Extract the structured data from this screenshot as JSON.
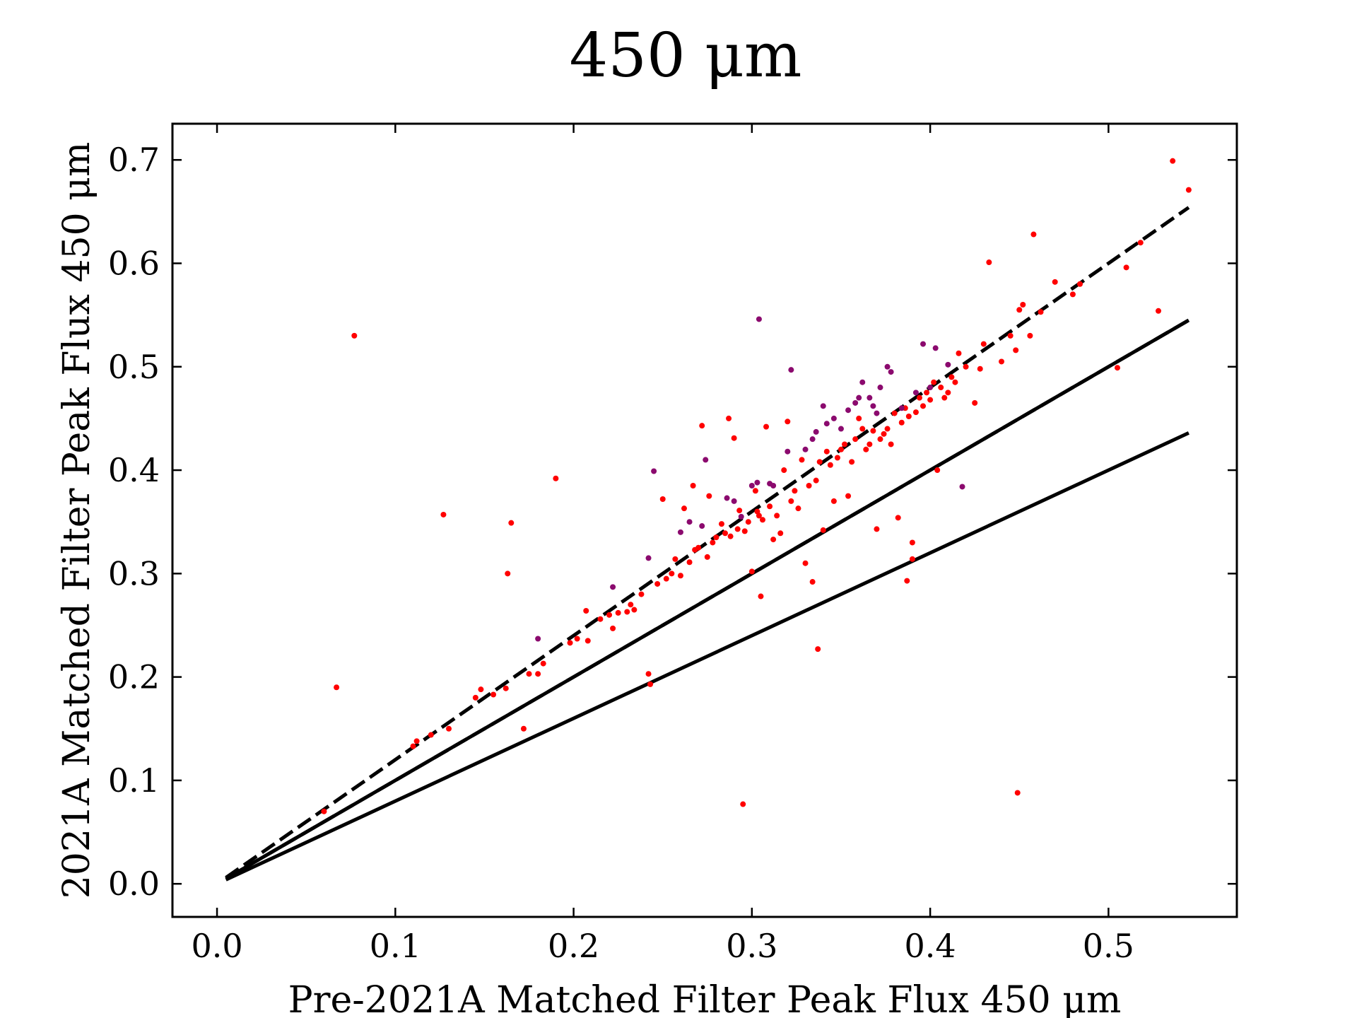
{
  "chart_data": {
    "type": "scatter",
    "title": "450 μm",
    "xlabel": "Pre-2021A Matched Filter Peak Flux 450 μm",
    "ylabel": "2021A Matched Filter Peak Flux 450 μm",
    "xlim": [
      -0.025,
      0.572
    ],
    "ylim": [
      -0.032,
      0.735
    ],
    "xticks": [
      0.0,
      0.1,
      0.2,
      0.3,
      0.4,
      0.5
    ],
    "xtick_labels": [
      "0.0",
      "0.1",
      "0.2",
      "0.3",
      "0.4",
      "0.5"
    ],
    "yticks": [
      0.0,
      0.1,
      0.2,
      0.3,
      0.4,
      0.5,
      0.6,
      0.7
    ],
    "ytick_labels": [
      "0.0",
      "0.1",
      "0.2",
      "0.3",
      "0.4",
      "0.5",
      "0.6",
      "0.7"
    ],
    "grid": false,
    "colors": {
      "red_points": "#ff0000",
      "purple_points": "#8b0a6e",
      "lines": "#000000"
    },
    "lines": [
      {
        "style": "dashed",
        "slope": 1.2,
        "x_range": [
          0.005,
          0.545
        ]
      },
      {
        "style": "dashed",
        "slope": 1.0,
        "x_range": [
          0.005,
          0.545
        ]
      },
      {
        "style": "solid",
        "slope": 1.0,
        "x_range": [
          0.005,
          0.545
        ]
      },
      {
        "style": "solid",
        "slope": 0.8,
        "x_range": [
          0.005,
          0.545
        ]
      }
    ],
    "series": [
      {
        "color": "#ff0000",
        "points": [
          [
            0.06,
            0.07
          ],
          [
            0.067,
            0.19
          ],
          [
            0.077,
            0.53
          ],
          [
            0.11,
            0.133
          ],
          [
            0.112,
            0.138
          ],
          [
            0.12,
            0.144
          ],
          [
            0.127,
            0.357
          ],
          [
            0.13,
            0.15
          ],
          [
            0.145,
            0.18
          ],
          [
            0.148,
            0.188
          ],
          [
            0.155,
            0.183
          ],
          [
            0.162,
            0.189
          ],
          [
            0.163,
            0.3
          ],
          [
            0.165,
            0.349
          ],
          [
            0.172,
            0.15
          ],
          [
            0.175,
            0.203
          ],
          [
            0.18,
            0.203
          ],
          [
            0.183,
            0.213
          ],
          [
            0.19,
            0.392
          ],
          [
            0.198,
            0.233
          ],
          [
            0.202,
            0.237
          ],
          [
            0.207,
            0.264
          ],
          [
            0.208,
            0.235
          ],
          [
            0.215,
            0.256
          ],
          [
            0.22,
            0.26
          ],
          [
            0.222,
            0.247
          ],
          [
            0.225,
            0.262
          ],
          [
            0.23,
            0.263
          ],
          [
            0.232,
            0.27
          ],
          [
            0.234,
            0.265
          ],
          [
            0.238,
            0.28
          ],
          [
            0.242,
            0.203
          ],
          [
            0.243,
            0.193
          ],
          [
            0.247,
            0.29
          ],
          [
            0.25,
            0.372
          ],
          [
            0.252,
            0.295
          ],
          [
            0.255,
            0.3
          ],
          [
            0.257,
            0.314
          ],
          [
            0.26,
            0.298
          ],
          [
            0.262,
            0.363
          ],
          [
            0.265,
            0.311
          ],
          [
            0.267,
            0.385
          ],
          [
            0.268,
            0.323
          ],
          [
            0.27,
            0.325
          ],
          [
            0.272,
            0.443
          ],
          [
            0.275,
            0.316
          ],
          [
            0.276,
            0.375
          ],
          [
            0.278,
            0.33
          ],
          [
            0.28,
            0.335
          ],
          [
            0.283,
            0.348
          ],
          [
            0.285,
            0.339
          ],
          [
            0.287,
            0.45
          ],
          [
            0.288,
            0.336
          ],
          [
            0.29,
            0.431
          ],
          [
            0.292,
            0.343
          ],
          [
            0.293,
            0.361
          ],
          [
            0.295,
            0.077
          ],
          [
            0.296,
            0.341
          ],
          [
            0.298,
            0.35
          ],
          [
            0.3,
            0.302
          ],
          [
            0.302,
            0.38
          ],
          [
            0.303,
            0.36
          ],
          [
            0.304,
            0.356
          ],
          [
            0.305,
            0.278
          ],
          [
            0.306,
            0.352
          ],
          [
            0.308,
            0.442
          ],
          [
            0.31,
            0.365
          ],
          [
            0.312,
            0.333
          ],
          [
            0.314,
            0.356
          ],
          [
            0.316,
            0.339
          ],
          [
            0.318,
            0.4
          ],
          [
            0.32,
            0.447
          ],
          [
            0.322,
            0.37
          ],
          [
            0.324,
            0.38
          ],
          [
            0.326,
            0.363
          ],
          [
            0.328,
            0.41
          ],
          [
            0.33,
            0.31
          ],
          [
            0.332,
            0.385
          ],
          [
            0.334,
            0.292
          ],
          [
            0.336,
            0.39
          ],
          [
            0.337,
            0.227
          ],
          [
            0.338,
            0.408
          ],
          [
            0.34,
            0.342
          ],
          [
            0.342,
            0.418
          ],
          [
            0.344,
            0.405
          ],
          [
            0.346,
            0.37
          ],
          [
            0.348,
            0.412
          ],
          [
            0.35,
            0.42
          ],
          [
            0.352,
            0.425
          ],
          [
            0.354,
            0.375
          ],
          [
            0.356,
            0.408
          ],
          [
            0.358,
            0.43
          ],
          [
            0.36,
            0.45
          ],
          [
            0.362,
            0.44
          ],
          [
            0.364,
            0.42
          ],
          [
            0.366,
            0.425
          ],
          [
            0.368,
            0.438
          ],
          [
            0.37,
            0.343
          ],
          [
            0.372,
            0.43
          ],
          [
            0.374,
            0.435
          ],
          [
            0.376,
            0.44
          ],
          [
            0.378,
            0.425
          ],
          [
            0.38,
            0.455
          ],
          [
            0.382,
            0.354
          ],
          [
            0.384,
            0.446
          ],
          [
            0.386,
            0.46
          ],
          [
            0.387,
            0.293
          ],
          [
            0.388,
            0.452
          ],
          [
            0.39,
            0.33
          ],
          [
            0.39,
            0.314
          ],
          [
            0.392,
            0.456
          ],
          [
            0.394,
            0.47
          ],
          [
            0.396,
            0.462
          ],
          [
            0.398,
            0.475
          ],
          [
            0.4,
            0.468
          ],
          [
            0.402,
            0.485
          ],
          [
            0.404,
            0.4
          ],
          [
            0.406,
            0.48
          ],
          [
            0.408,
            0.47
          ],
          [
            0.41,
            0.475
          ],
          [
            0.412,
            0.49
          ],
          [
            0.414,
            0.485
          ],
          [
            0.416,
            0.513
          ],
          [
            0.42,
            0.5
          ],
          [
            0.425,
            0.465
          ],
          [
            0.428,
            0.498
          ],
          [
            0.43,
            0.522
          ],
          [
            0.433,
            0.601
          ],
          [
            0.44,
            0.505
          ],
          [
            0.445,
            0.53
          ],
          [
            0.448,
            0.516
          ],
          [
            0.449,
            0.088
          ],
          [
            0.45,
            0.555
          ],
          [
            0.452,
            0.56
          ],
          [
            0.456,
            0.53
          ],
          [
            0.458,
            0.628
          ],
          [
            0.462,
            0.553
          ],
          [
            0.47,
            0.582
          ],
          [
            0.48,
            0.57
          ],
          [
            0.484,
            0.58
          ],
          [
            0.505,
            0.499
          ],
          [
            0.51,
            0.596
          ],
          [
            0.518,
            0.62
          ],
          [
            0.528,
            0.554
          ],
          [
            0.536,
            0.699
          ],
          [
            0.545,
            0.671
          ]
        ]
      },
      {
        "color": "#8b0a6e",
        "points": [
          [
            0.18,
            0.237
          ],
          [
            0.222,
            0.287
          ],
          [
            0.242,
            0.315
          ],
          [
            0.245,
            0.399
          ],
          [
            0.26,
            0.34
          ],
          [
            0.265,
            0.35
          ],
          [
            0.272,
            0.346
          ],
          [
            0.274,
            0.41
          ],
          [
            0.286,
            0.373
          ],
          [
            0.29,
            0.37
          ],
          [
            0.294,
            0.355
          ],
          [
            0.3,
            0.385
          ],
          [
            0.303,
            0.388
          ],
          [
            0.304,
            0.546
          ],
          [
            0.31,
            0.387
          ],
          [
            0.312,
            0.385
          ],
          [
            0.32,
            0.418
          ],
          [
            0.322,
            0.497
          ],
          [
            0.33,
            0.42
          ],
          [
            0.334,
            0.43
          ],
          [
            0.336,
            0.437
          ],
          [
            0.34,
            0.462
          ],
          [
            0.342,
            0.445
          ],
          [
            0.346,
            0.45
          ],
          [
            0.35,
            0.44
          ],
          [
            0.354,
            0.458
          ],
          [
            0.358,
            0.465
          ],
          [
            0.36,
            0.47
          ],
          [
            0.362,
            0.485
          ],
          [
            0.366,
            0.47
          ],
          [
            0.368,
            0.462
          ],
          [
            0.37,
            0.455
          ],
          [
            0.372,
            0.48
          ],
          [
            0.376,
            0.5
          ],
          [
            0.378,
            0.495
          ],
          [
            0.384,
            0.46
          ],
          [
            0.392,
            0.475
          ],
          [
            0.396,
            0.522
          ],
          [
            0.4,
            0.48
          ],
          [
            0.403,
            0.518
          ],
          [
            0.41,
            0.502
          ],
          [
            0.418,
            0.384
          ]
        ]
      }
    ]
  }
}
